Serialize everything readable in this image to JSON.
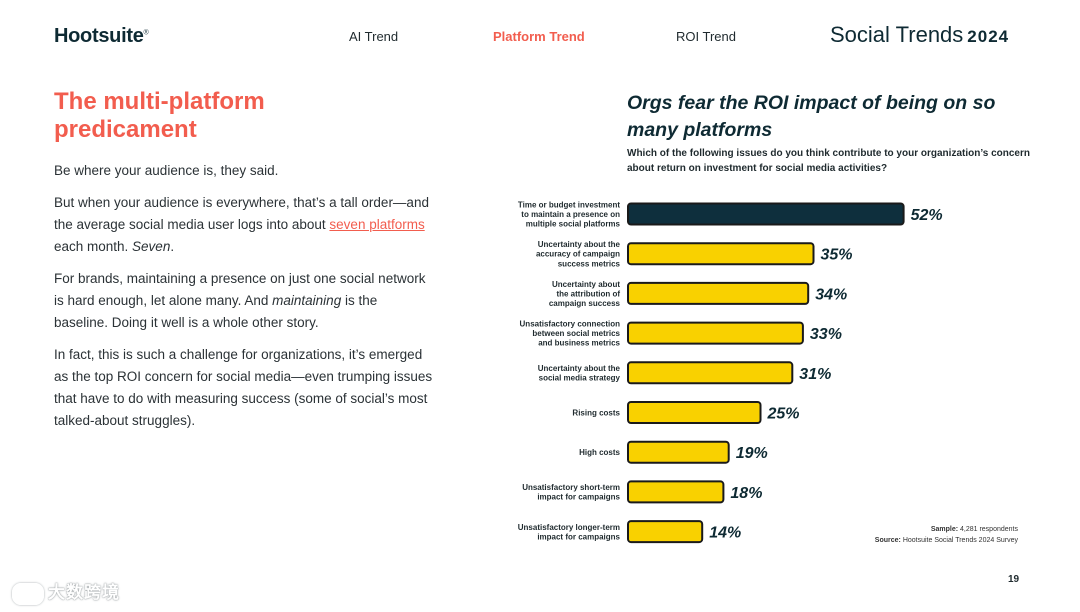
{
  "header": {
    "logo": "Hootsuite",
    "logo_mark": "®",
    "nav": [
      "AI Trend",
      "Platform Trend",
      "ROI Trend"
    ],
    "active_nav": "Platform Trend",
    "brand": "Social Trends",
    "brand_year": "2024"
  },
  "article": {
    "headline": "The multi-platform predicament",
    "p1": "Be where your audience is, they said.",
    "p2_a": "But when your audience is everywhere, that’s a tall order—and the average social media user logs into about ",
    "p2_link": "seven platforms",
    "p2_b": " each month. ",
    "p2_em": "Seven",
    "p2_c": ".",
    "p3_a": "For brands, maintaining a presence on just one social network is hard enough, let alone many. And ",
    "p3_em": "maintaining",
    "p3_b": " is the baseline. Doing it well is a whole other story.",
    "p4": "In fact, this is such a challenge for organizations, it’s emerged as the top ROI concern for social media—even trumping issues that have to do with measuring success (some of social’s most talked-about struggles)."
  },
  "chart_data": {
    "type": "bar",
    "orientation": "horizontal",
    "title": "Orgs fear the ROI impact of being on so many platforms",
    "question": "Which of the following issues do you think contribute to your organization’s concern about return on investment for social media activities?",
    "categories": [
      "Time or budget investment to maintain a presence on multiple social platforms",
      "Uncertainty about the accuracy of campaign success metrics",
      "Uncertainty about the attribution of campaign success",
      "Unsatisfactory connection between social metrics and business metrics",
      "Uncertainty about the social media strategy",
      "Rising costs",
      "High costs",
      "Unsatisfactory short-term impact for campaigns",
      "Unsatisfactory longer-term impact for campaigns"
    ],
    "category_lines": [
      [
        "Time or budget investment",
        "to maintain a presence on",
        "multiple social platforms"
      ],
      [
        "Uncertainty about the",
        "accuracy of campaign",
        "success metrics"
      ],
      [
        "Uncertainty about",
        "the attribution of",
        "campaign success"
      ],
      [
        "Unsatisfactory connection",
        "between social metrics",
        "and business metrics"
      ],
      [
        "Uncertainty about the",
        "social media strategy"
      ],
      [
        "Rising costs"
      ],
      [
        "High costs"
      ],
      [
        "Unsatisfactory short-term",
        "impact for campaigns"
      ],
      [
        "Unsatisfactory longer-term",
        "impact for campaigns"
      ]
    ],
    "values": [
      52,
      35,
      34,
      33,
      31,
      25,
      19,
      18,
      14
    ],
    "value_labels": [
      "52%",
      "35%",
      "34%",
      "33%",
      "31%",
      "25%",
      "19%",
      "18%",
      "14%"
    ],
    "unit": "%",
    "highlight_index": 0,
    "colors": {
      "highlight": "#0e2f3d",
      "bar": "#f9d100",
      "outline": "#1a1a1a"
    },
    "sample_label": "Sample:",
    "sample": "4,281 respondents",
    "source_label": "Source:",
    "source": "Hootsuite Social Trends 2024 Survey"
  },
  "footer": {
    "page_number": "19",
    "watermark": "大数跨境"
  }
}
